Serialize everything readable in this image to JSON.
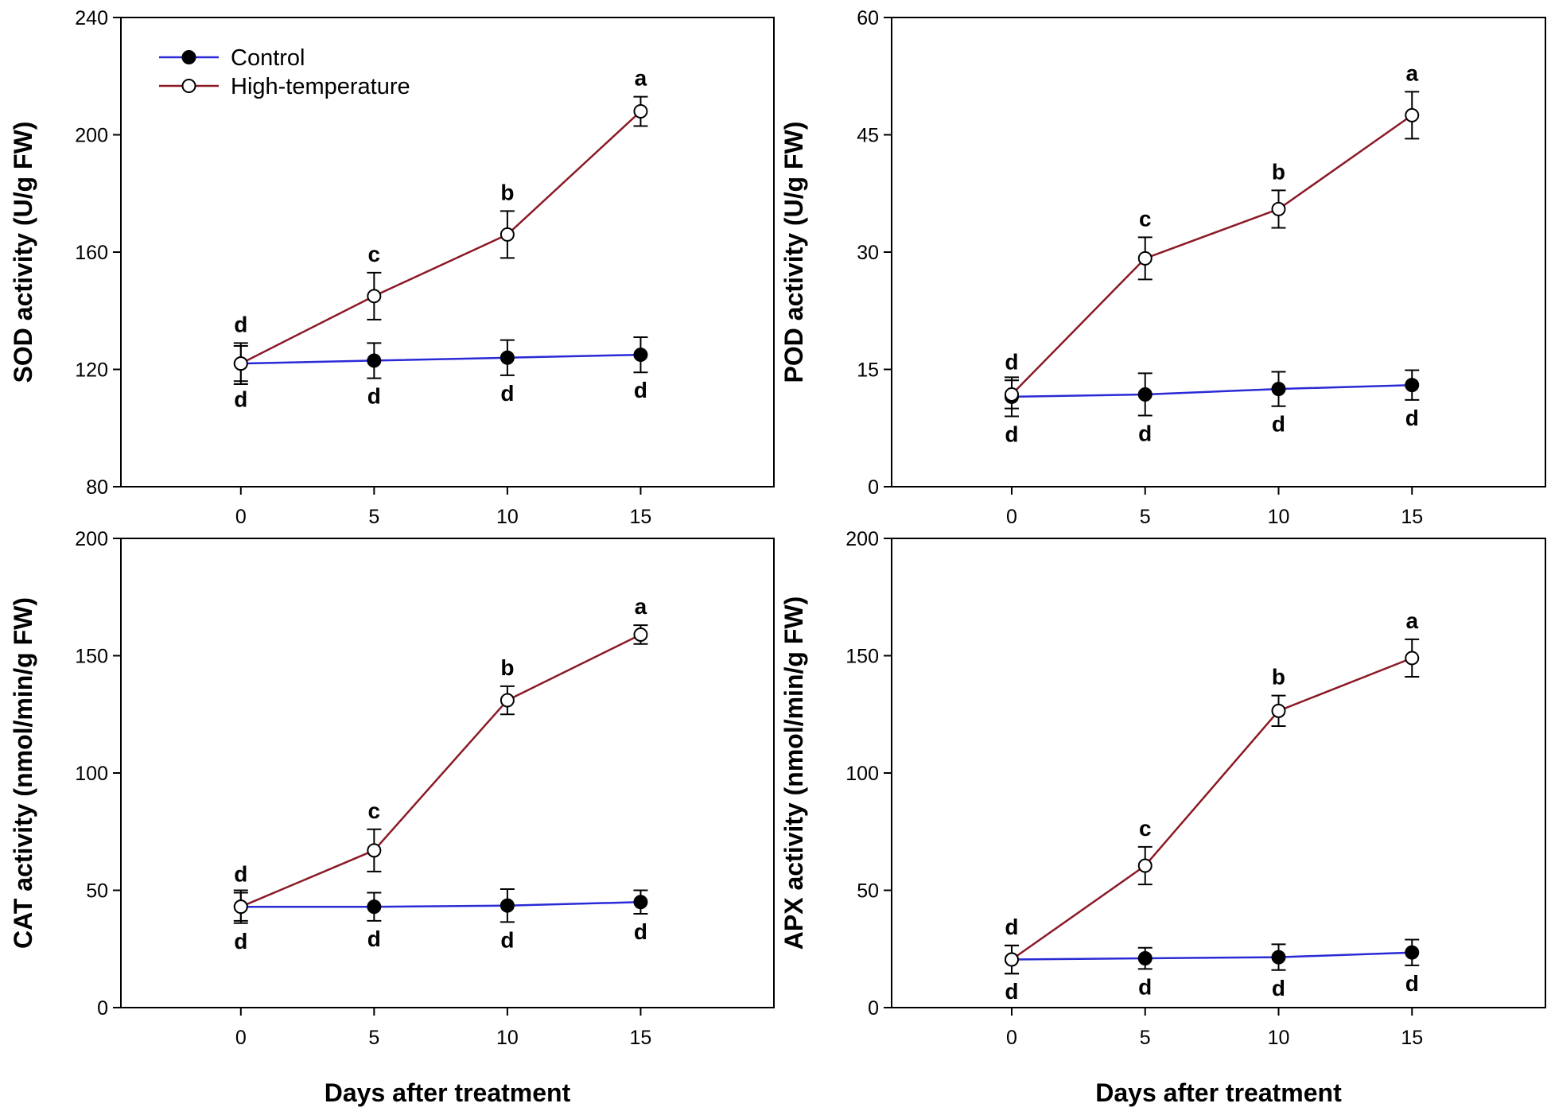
{
  "colors": {
    "control": "#2a2ad6",
    "high_temperature": "#8b1a26",
    "axis": "#000000"
  },
  "legend": {
    "entries": [
      {
        "series": "Control",
        "marker": "filled-circle"
      },
      {
        "series": "High-temperature",
        "marker": "open-circle"
      }
    ]
  },
  "chart_data": [
    {
      "type": "line",
      "panel": "top-left",
      "ylabel": "SOD activity (U/g FW)",
      "xlabel": "",
      "x": [
        0,
        5,
        10,
        15
      ],
      "xlim": [
        -4.5,
        20
      ],
      "ylim": [
        80,
        240
      ],
      "xticks": [
        "0",
        "5",
        "10",
        "15"
      ],
      "yticks": [
        "80",
        "120",
        "160",
        "200",
        "240"
      ],
      "ytick_values": [
        80,
        120,
        160,
        200,
        240
      ],
      "legend_position": "top-left",
      "series": [
        {
          "name": "Control",
          "values": [
            122,
            123,
            124,
            125
          ],
          "errors": [
            6,
            6,
            6,
            6
          ],
          "labels": [
            "d",
            "d",
            "d",
            "d"
          ],
          "label_position": "below"
        },
        {
          "name": "High-temperature",
          "values": [
            122,
            145,
            166,
            208
          ],
          "errors": [
            7,
            8,
            8,
            5
          ],
          "labels": [
            "d",
            "c",
            "b",
            "a"
          ],
          "label_position": "above"
        }
      ]
    },
    {
      "type": "line",
      "panel": "top-right",
      "ylabel": "POD activity (U/g FW)",
      "xlabel": "",
      "x": [
        0,
        5,
        10,
        15
      ],
      "xlim": [
        -4.5,
        20
      ],
      "ylim": [
        0,
        60
      ],
      "xticks": [
        "0",
        "5",
        "10",
        "15"
      ],
      "yticks": [
        "0",
        "15",
        "30",
        "45",
        "60"
      ],
      "ytick_values": [
        0,
        15,
        30,
        45,
        60
      ],
      "series": [
        {
          "name": "Control",
          "values": [
            11.5,
            11.8,
            12.5,
            13.0
          ],
          "errors": [
            2.5,
            2.7,
            2.2,
            1.9
          ],
          "labels": [
            "d",
            "d",
            "d",
            "d"
          ],
          "label_position": "below"
        },
        {
          "name": "High-temperature",
          "values": [
            11.8,
            29.2,
            35.5,
            47.5
          ],
          "errors": [
            1.8,
            2.7,
            2.4,
            3.0
          ],
          "labels": [
            "d",
            "c",
            "b",
            "a"
          ],
          "label_position": "above"
        }
      ]
    },
    {
      "type": "line",
      "panel": "bottom-left",
      "ylabel": "CAT activity (nmol/min/g FW)",
      "xlabel": "Days after treatment",
      "x": [
        0,
        5,
        10,
        15
      ],
      "xlim": [
        -4.5,
        20
      ],
      "ylim": [
        0,
        200
      ],
      "xticks": [
        "0",
        "5",
        "10",
        "15"
      ],
      "yticks": [
        "0",
        "50",
        "100",
        "150",
        "200"
      ],
      "ytick_values": [
        0,
        50,
        100,
        150,
        200
      ],
      "series": [
        {
          "name": "Control",
          "values": [
            43,
            43,
            43.5,
            45
          ],
          "errors": [
            7,
            6,
            7,
            5
          ],
          "labels": [
            "d",
            "d",
            "d",
            "d"
          ],
          "label_position": "below"
        },
        {
          "name": "High-temperature",
          "values": [
            43,
            67,
            131,
            159
          ],
          "errors": [
            6,
            9,
            6,
            4
          ],
          "labels": [
            "d",
            "c",
            "b",
            "a"
          ],
          "label_position": "above"
        }
      ]
    },
    {
      "type": "line",
      "panel": "bottom-right",
      "ylabel": "APX activity (nmol/min/g FW)",
      "xlabel": "Days after treatment",
      "x": [
        0,
        5,
        10,
        15
      ],
      "xlim": [
        -4.5,
        20
      ],
      "ylim": [
        0,
        200
      ],
      "xticks": [
        "0",
        "5",
        "10",
        "15"
      ],
      "yticks": [
        "0",
        "50",
        "100",
        "150",
        "200"
      ],
      "ytick_values": [
        0,
        50,
        100,
        150,
        200
      ],
      "series": [
        {
          "name": "Control",
          "values": [
            20.5,
            21,
            21.5,
            23.5
          ],
          "errors": [
            6,
            4.5,
            5.5,
            5.5
          ],
          "labels": [
            "d",
            "d",
            "d",
            "d"
          ],
          "label_position": "below"
        },
        {
          "name": "High-temperature",
          "values": [
            20.5,
            60.5,
            126.5,
            149
          ],
          "errors": [
            6,
            8,
            6.5,
            8
          ],
          "labels": [
            "d",
            "c",
            "b",
            "a"
          ],
          "label_position": "above"
        }
      ]
    }
  ]
}
